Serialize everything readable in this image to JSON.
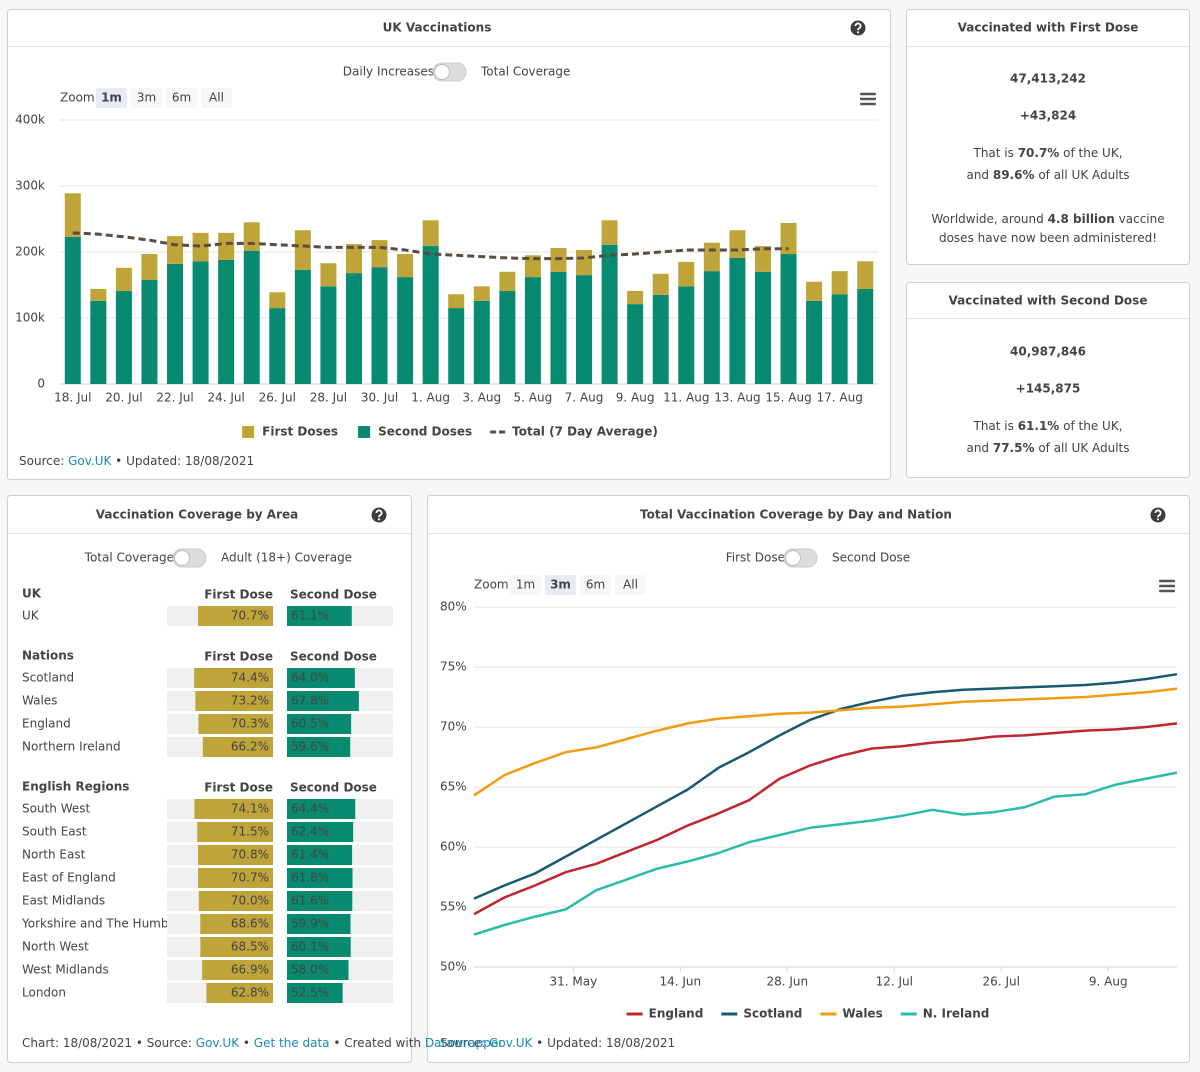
{
  "chart_data": [
    {
      "type": "bar",
      "stacked": true,
      "title": "UK Vaccinations",
      "toggle": [
        "Daily Increases",
        "Total Coverage"
      ],
      "zoom": {
        "label": "Zoom",
        "buttons": [
          "1m",
          "3m",
          "6m",
          "All"
        ],
        "selected": 0
      },
      "categories": [
        "18. Jul",
        null,
        "20. Jul",
        null,
        "22. Jul",
        null,
        "24. Jul",
        null,
        "26. Jul",
        null,
        "28. Jul",
        null,
        "30. Jul",
        null,
        "1. Aug",
        null,
        "3. Aug",
        null,
        "5. Aug",
        null,
        "7. Aug",
        null,
        "9. Aug",
        null,
        "11. Aug",
        null,
        "13. Aug",
        null,
        "15. Aug",
        null,
        "17. Aug",
        null
      ],
      "series": [
        {
          "name": "First Doses",
          "color": "#bfa43a",
          "values": [
            66000,
            18000,
            35000,
            39000,
            42000,
            43000,
            41000,
            43000,
            24000,
            60000,
            35000,
            44000,
            41000,
            35000,
            39000,
            21000,
            22000,
            29000,
            33000,
            36000,
            38000,
            37000,
            20000,
            32000,
            37000,
            43000,
            42000,
            39000,
            47000,
            29000,
            35000,
            42000
          ]
        },
        {
          "name": "Second Doses",
          "color": "#078a6f",
          "values": [
            223000,
            126000,
            141000,
            158000,
            182000,
            186000,
            188000,
            202000,
            115000,
            173000,
            148000,
            168000,
            177000,
            162000,
            209000,
            115000,
            126000,
            141000,
            162000,
            170000,
            165000,
            211000,
            121000,
            135000,
            148000,
            171000,
            191000,
            170000,
            197000,
            126000,
            136000,
            144000
          ]
        },
        {
          "name": "Total (7 Day Average)",
          "type": "line",
          "dashed": true,
          "color": "#5b4b43",
          "values": [
            229000,
            227000,
            223000,
            218000,
            211000,
            209000,
            213000,
            213000,
            211000,
            209000,
            207000,
            207000,
            207000,
            203000,
            197000,
            195000,
            193000,
            191000,
            190000,
            190000,
            191000,
            195000,
            197000,
            200000,
            203000,
            203000,
            203000,
            205000,
            205000,
            null,
            null,
            null
          ]
        }
      ],
      "ylim": [
        0,
        400000
      ],
      "yticks": [
        0,
        {
          "value": 100000,
          "label": "100k"
        },
        {
          "value": 200000,
          "label": "200k"
        },
        {
          "value": 300000,
          "label": "300k"
        },
        {
          "value": 400000,
          "label": "400k"
        }
      ],
      "grid": true,
      "legend": "bottom",
      "source": [
        "Source: ",
        "Gov.UK",
        " • Updated: 18/08/2021"
      ]
    },
    {
      "type": "line",
      "title": "Total Vaccination Coverage by Day and Nation",
      "toggle": [
        "First Dose",
        "Second Dose"
      ],
      "zoom": {
        "label": "Zoom",
        "buttons": [
          "1m",
          "3m",
          "6m",
          "All"
        ],
        "selected": 1
      },
      "x": [
        "18. May",
        "22. May",
        "26. May",
        "30. May",
        "3. Jun",
        "7. Jun",
        "11. Jun",
        "15. Jun",
        "19. Jun",
        "23. Jun",
        "27. Jun",
        "1. Jul",
        "5. Jul",
        "9. Jul",
        "13. Jul",
        "17. Jul",
        "21. Jul",
        "25. Jul",
        "29. Jul",
        "2. Aug",
        "6. Aug",
        "10. Aug",
        "14. Aug",
        "18. Aug"
      ],
      "xlim": [
        "18. May",
        "18. Aug"
      ],
      "xticks": [
        "31. May",
        "14. Jun",
        "28. Jun",
        "12. Jul",
        "26. Jul",
        "9. Aug"
      ],
      "series": [
        {
          "name": "England",
          "color": "#c0262d",
          "values": [
            54.4,
            55.8,
            56.8,
            57.9,
            58.6,
            59.6,
            60.6,
            61.8,
            62.8,
            63.9,
            65.7,
            66.8,
            67.6,
            68.2,
            68.4,
            68.7,
            68.9,
            69.2,
            69.3,
            69.5,
            69.7,
            69.8,
            70.0,
            70.3
          ]
        },
        {
          "name": "Scotland",
          "color": "#185a74",
          "values": [
            55.7,
            56.8,
            57.8,
            59.2,
            60.6,
            62.0,
            63.4,
            64.8,
            66.6,
            67.9,
            69.3,
            70.6,
            71.5,
            72.1,
            72.6,
            72.9,
            73.1,
            73.2,
            73.3,
            73.4,
            73.5,
            73.7,
            74.0,
            74.4
          ]
        },
        {
          "name": "Wales",
          "color": "#f39c12",
          "values": [
            64.3,
            66.0,
            67.0,
            67.9,
            68.3,
            69.0,
            69.7,
            70.3,
            70.7,
            70.9,
            71.1,
            71.2,
            71.4,
            71.6,
            71.7,
            71.9,
            72.1,
            72.2,
            72.3,
            72.4,
            72.5,
            72.7,
            72.9,
            73.2
          ]
        },
        {
          "name": "N. Ireland",
          "color": "#2bbbad",
          "values": [
            52.7,
            53.5,
            54.2,
            54.8,
            56.4,
            57.3,
            58.2,
            58.8,
            59.5,
            60.4,
            61.0,
            61.6,
            61.9,
            62.2,
            62.6,
            63.1,
            62.7,
            62.9,
            63.3,
            64.2,
            64.4,
            65.2,
            65.7,
            66.2
          ]
        }
      ],
      "ylim": [
        50,
        80
      ],
      "yticks": [
        {
          "value": 50,
          "label": "50%"
        },
        {
          "value": 55,
          "label": "55%"
        },
        {
          "value": 60,
          "label": "60%"
        },
        {
          "value": 65,
          "label": "65%"
        },
        {
          "value": 70,
          "label": "70%"
        },
        {
          "value": 75,
          "label": "75%"
        },
        {
          "value": 80,
          "label": "80%"
        }
      ],
      "grid": true,
      "legend": "bottom",
      "source": [
        "Source: ",
        "Gov.UK",
        " • Updated: 18/08/2021"
      ]
    }
  ],
  "cards": [
    {
      "title": "Vaccinated with First Dose",
      "total": "47,413,242",
      "change": "+43,824",
      "color": "#b59a2e",
      "paragraphs": [
        [
          [
            "That is ",
            "70.7%",
            " of the UK,"
          ],
          [
            "and ",
            "89.6%",
            " of all UK Adults"
          ]
        ],
        [
          [
            "Worldwide, around ",
            "4.8 billion",
            " vaccine"
          ],
          [
            "doses have now been administered!"
          ]
        ]
      ]
    },
    {
      "title": "Vaccinated with Second Dose",
      "total": "40,987,846",
      "change": "+145,875",
      "color": "#078a6f",
      "paragraphs": [
        [
          [
            "That is ",
            "61.1%",
            " of the UK,"
          ],
          [
            "and ",
            "77.5%",
            " of all UK Adults"
          ]
        ]
      ]
    }
  ],
  "coverage": {
    "title": "Vaccination Coverage by Area",
    "toggle": [
      "Total Coverage",
      "Adult (18+) Coverage"
    ],
    "colors": {
      "first": "#bfa43a",
      "second": "#078a6f"
    },
    "groups": [
      {
        "name": "UK",
        "columns": [
          "First Dose",
          "Second Dose"
        ],
        "rows": [
          {
            "name": "UK",
            "first": 70.7,
            "first_label": "70.7%",
            "second": 61.1,
            "second_label": "61.1%"
          }
        ]
      },
      {
        "name": "Nations",
        "columns": [
          "First Dose",
          "Second Dose"
        ],
        "rows": [
          {
            "name": "Scotland",
            "first": 74.4,
            "first_label": "74.4%",
            "second": 64.0,
            "second_label": "64.0%"
          },
          {
            "name": "Wales",
            "first": 73.2,
            "first_label": "73.2%",
            "second": 67.8,
            "second_label": "67.8%"
          },
          {
            "name": "England",
            "first": 70.3,
            "first_label": "70.3%",
            "second": 60.5,
            "second_label": "60.5%"
          },
          {
            "name": "Northern Ireland",
            "first": 66.2,
            "first_label": "66.2%",
            "second": 59.6,
            "second_label": "59.6%"
          }
        ]
      },
      {
        "name": "English Regions",
        "columns": [
          "First Dose",
          "Second Dose"
        ],
        "rows": [
          {
            "name": "South West",
            "first": 74.1,
            "first_label": "74.1%",
            "second": 64.4,
            "second_label": "64.4%"
          },
          {
            "name": "South East",
            "first": 71.5,
            "first_label": "71.5%",
            "second": 62.4,
            "second_label": "62.4%"
          },
          {
            "name": "North East",
            "first": 70.8,
            "first_label": "70.8%",
            "second": 61.4,
            "second_label": "61.4%"
          },
          {
            "name": "East of England",
            "first": 70.7,
            "first_label": "70.7%",
            "second": 61.8,
            "second_label": "61.8%"
          },
          {
            "name": "East Midlands",
            "first": 70.0,
            "first_label": "70.0%",
            "second": 61.6,
            "second_label": "61.6%"
          },
          {
            "name": "Yorkshire and The Humber",
            "first": 68.6,
            "first_label": "68.6%",
            "second": 59.9,
            "second_label": "59.9%"
          },
          {
            "name": "North West",
            "first": 68.5,
            "first_label": "68.5%",
            "second": 60.1,
            "second_label": "60.1%"
          },
          {
            "name": "West Midlands",
            "first": 66.9,
            "first_label": "66.9%",
            "second": 58.0,
            "second_label": "58.0%"
          },
          {
            "name": "London",
            "first": 62.8,
            "first_label": "62.8%",
            "second": 52.5,
            "second_label": "52.5%"
          }
        ]
      }
    ],
    "footer": [
      "Chart: 18/08/2021 • Source: ",
      "Gov.UK",
      " • ",
      "Get the data",
      " • Created with ",
      "Datawrapper"
    ]
  }
}
